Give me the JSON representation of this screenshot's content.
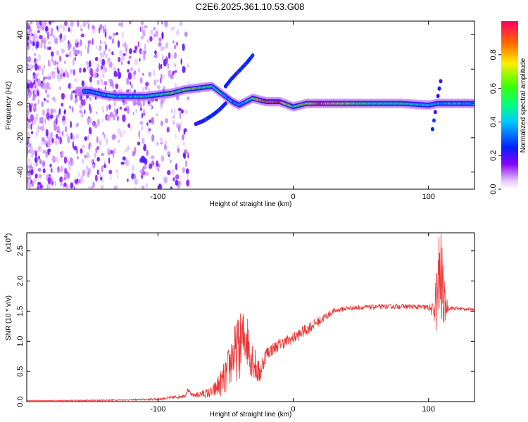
{
  "title": "C2E6.2025.361.10.53.G08",
  "chart_data": [
    {
      "type": "heatmap",
      "xlabel": "Height of straight line (km)",
      "ylabel": "Frequency (Hz)",
      "xlim": [
        -197,
        134
      ],
      "ylim": [
        -50,
        48
      ],
      "xticks": [
        -100,
        0,
        100
      ],
      "xtick_labels": [
        "-100",
        "0",
        "100"
      ],
      "yticks": [
        -40,
        -20,
        0,
        20,
        40
      ],
      "ytick_labels": [
        "-40",
        "-20",
        "0",
        "20",
        "40"
      ],
      "colorbar": {
        "label": "Normalized spectral amplitude",
        "range": [
          0,
          1
        ],
        "ticks": [
          0,
          0.2,
          0.4,
          0.6,
          0.8
        ],
        "tick_labels": [
          "0.0",
          "0.2",
          "0.4",
          "0.6",
          "0.8"
        ]
      },
      "ridge_x": [
        -150,
        -140,
        -130,
        -120,
        -110,
        -100,
        -90,
        -80,
        -70,
        -60,
        -55,
        -50,
        -45,
        -40,
        -35,
        -30,
        -25,
        -20,
        -10,
        0,
        10,
        20,
        40,
        60,
        80,
        100,
        107,
        134
      ],
      "ridge_y": [
        7,
        5,
        4,
        4,
        4,
        5,
        6,
        8,
        9,
        10,
        7,
        4,
        1,
        -1,
        1,
        3,
        2,
        1,
        1,
        -2,
        0,
        0,
        0,
        0,
        0,
        -1,
        0,
        0
      ],
      "ridge_amp": [
        0.35,
        0.4,
        0.45,
        0.4,
        0.45,
        0.5,
        0.6,
        0.65,
        0.6,
        0.55,
        0.45,
        0.4,
        0.35,
        0.35,
        0.45,
        0.6,
        0.85,
        0.9,
        0.95,
        0.5,
        0.7,
        0.9,
        0.65,
        0.55,
        0.5,
        0.45,
        0.4,
        0.4
      ],
      "secondary_branches": [
        {
          "x": [
            -50,
            -46,
            -40,
            -34,
            -30
          ],
          "y": [
            10,
            14,
            19,
            24,
            28
          ]
        },
        {
          "x": [
            -50,
            -55,
            -60,
            -66,
            -72
          ],
          "y": [
            0,
            -4,
            -7,
            -10,
            -12
          ]
        },
        {
          "x": [
            103,
            106,
            109
          ],
          "y": [
            -15,
            0,
            13
          ]
        }
      ]
    },
    {
      "type": "line",
      "xlabel": "Height of straight line (km)",
      "ylabel": "SNR (10 * v/v)",
      "y_scale_label": "(x10",
      "y_scale_exponent": "4",
      "y_scale_suffix": ")",
      "xlim": [
        -197,
        134
      ],
      "ylim": [
        0,
        2.8
      ],
      "xticks": [
        -100,
        0,
        100
      ],
      "xtick_labels": [
        "-100",
        "0",
        "100"
      ],
      "yticks": [
        0,
        0.5,
        1.0,
        1.5,
        2.0,
        2.5
      ],
      "ytick_labels": [
        "0.0",
        "0.5",
        "1.0",
        "1.5",
        "2.0",
        "2.5"
      ],
      "color": "#ee3333",
      "x": [
        -197,
        -150,
        -120,
        -100,
        -85,
        -80,
        -78,
        -75,
        -60,
        -50,
        -45,
        -40,
        -35,
        -30,
        -25,
        -20,
        -10,
        0,
        10,
        20,
        30,
        40,
        60,
        80,
        100,
        104,
        106,
        108,
        109,
        110,
        112,
        115,
        134
      ],
      "y": [
        0.02,
        0.02,
        0.03,
        0.04,
        0.08,
        0.1,
        0.2,
        0.1,
        0.15,
        0.4,
        0.75,
        0.9,
        1.1,
        0.7,
        0.45,
        0.8,
        0.95,
        1.05,
        1.2,
        1.35,
        1.5,
        1.55,
        1.57,
        1.58,
        1.56,
        1.5,
        1.7,
        2.0,
        2.2,
        1.9,
        1.6,
        1.55,
        1.53
      ],
      "noise": [
        0.0,
        0.01,
        0.01,
        0.02,
        0.03,
        0.03,
        0.03,
        0.03,
        0.1,
        0.3,
        0.45,
        0.55,
        0.5,
        0.35,
        0.2,
        0.12,
        0.1,
        0.1,
        0.1,
        0.08,
        0.05,
        0.04,
        0.04,
        0.04,
        0.05,
        0.15,
        0.6,
        0.9,
        1.0,
        0.8,
        0.3,
        0.04,
        0.02
      ]
    }
  ]
}
